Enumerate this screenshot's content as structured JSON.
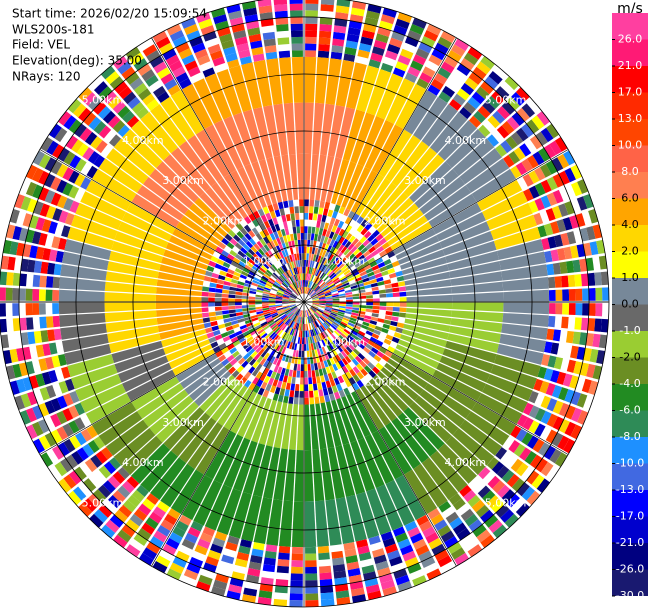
{
  "chart_data": {
    "type": "ppi",
    "info": [
      "Start time: 2026/02/20 15:09:54",
      "WLS200s-181",
      "Field: VEL",
      "Elevation(deg): 35.00",
      "NRays: 120"
    ],
    "rlim": [
      0,
      5.35
    ],
    "rticks": [
      {
        "value": 1,
        "label": "1.00km"
      },
      {
        "value": 2,
        "label": "2.00km"
      },
      {
        "value": 3,
        "label": "3.00km"
      },
      {
        "value": 4,
        "label": "4.00km"
      },
      {
        "value": 5,
        "label": "5.00km"
      }
    ],
    "colorbar": {
      "title": "m/s",
      "ticks": [
        {
          "value": 26,
          "label": "26.0"
        },
        {
          "value": 21,
          "label": "21.0"
        },
        {
          "value": 17,
          "label": "17.0"
        },
        {
          "value": 13,
          "label": "13.0"
        },
        {
          "value": 10,
          "label": "10.0"
        },
        {
          "value": 8,
          "label": "8.0"
        },
        {
          "value": 6,
          "label": "6.0"
        },
        {
          "value": 4,
          "label": "4.0"
        },
        {
          "value": 2,
          "label": "2.0"
        },
        {
          "value": 1,
          "label": "1.0"
        },
        {
          "value": 0,
          "label": "0.0"
        },
        {
          "value": -1,
          "label": "-1.0"
        },
        {
          "value": -2,
          "label": "-2.0"
        },
        {
          "value": -4,
          "label": "-4.0"
        },
        {
          "value": -6,
          "label": "-6.0"
        },
        {
          "value": -8,
          "label": "-8.0"
        },
        {
          "value": -10,
          "label": "-10.0"
        },
        {
          "value": -13,
          "label": "-13.0"
        },
        {
          "value": -17,
          "label": "-17.0"
        },
        {
          "value": -21,
          "label": "-21.0"
        },
        {
          "value": -26,
          "label": "-26.0"
        },
        {
          "value": -30,
          "label": "-30.0"
        }
      ],
      "colors": [
        "#ff3fa0",
        "#ff1a75",
        "#ff0000",
        "#ff2a00",
        "#ff4500",
        "#ff6347",
        "#ff7f50",
        "#ffa500",
        "#ffd700",
        "#ffff00",
        "#778899",
        "#696969",
        "#9acd32",
        "#6b8e23",
        "#228b22",
        "#2e8b57",
        "#1e90ff",
        "#4169e1",
        "#0000ff",
        "#0000cd",
        "#000080",
        "#191970"
      ]
    },
    "azimuths": [
      0,
      15,
      30,
      45,
      60,
      75,
      90,
      105,
      120,
      135,
      150,
      165,
      180,
      195,
      210,
      225,
      240,
      255,
      270,
      285,
      300,
      315,
      330,
      345
    ],
    "range_bands": [
      1.8,
      2.6,
      3.5,
      4.3
    ],
    "velocity": [
      [
        6,
        6,
        4
      ],
      [
        4,
        4,
        2
      ],
      [
        2,
        2,
        0.5
      ],
      [
        2,
        0.5,
        0.5
      ],
      [
        0.5,
        0.5,
        2
      ],
      [
        0.5,
        0.5,
        0.5
      ],
      [
        -1.5,
        -1.5,
        0.5
      ],
      [
        -1.5,
        -3,
        -3
      ],
      [
        -3,
        -3,
        -3
      ],
      [
        -3,
        -5,
        -3
      ],
      [
        -5,
        -5,
        -7
      ],
      [
        -5,
        -5,
        -7
      ],
      [
        -1.5,
        -5,
        -5
      ],
      [
        -1.5,
        -5,
        -5
      ],
      [
        -1.5,
        -3,
        -5
      ],
      [
        0.5,
        -1.5,
        -3
      ],
      [
        2,
        -0.5,
        -1.5
      ],
      [
        4,
        2,
        -0.5
      ],
      [
        4,
        2,
        0.5
      ],
      [
        4,
        2,
        2
      ],
      [
        4,
        6,
        2
      ],
      [
        6,
        6,
        2
      ],
      [
        6,
        6,
        4
      ],
      [
        6,
        6,
        4
      ]
    ]
  }
}
